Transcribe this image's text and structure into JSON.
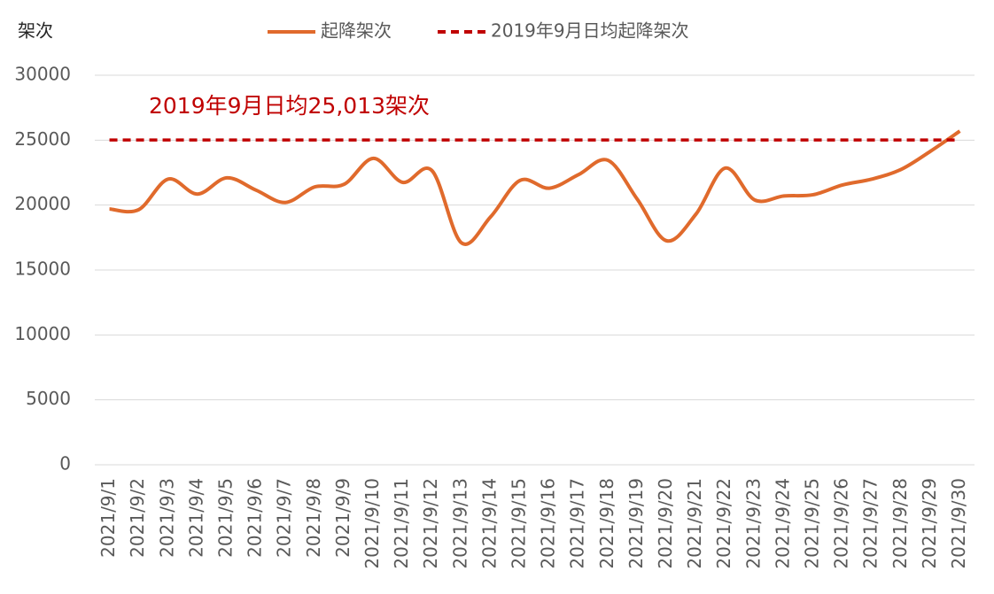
{
  "chart_data": {
    "type": "line",
    "y_label": "架次",
    "annotation": "2019年9月日均25,013架次",
    "categories": [
      "2021/9/1",
      "2021/9/2",
      "2021/9/3",
      "2021/9/4",
      "2021/9/5",
      "2021/9/6",
      "2021/9/7",
      "2021/9/8",
      "2021/9/9",
      "2021/9/10",
      "2021/9/11",
      "2021/9/12",
      "2021/9/13",
      "2021/9/14",
      "2021/9/15",
      "2021/9/16",
      "2021/9/17",
      "2021/9/18",
      "2021/9/19",
      "2021/9/20",
      "2021/9/21",
      "2021/9/22",
      "2021/9/23",
      "2021/9/24",
      "2021/9/25",
      "2021/9/26",
      "2021/9/27",
      "2021/9/28",
      "2021/9/29",
      "2021/9/30"
    ],
    "series": [
      {
        "name": "起降架次",
        "color": "#e06a2c",
        "style": "solid",
        "values": [
          19700,
          19650,
          22000,
          20850,
          22100,
          21150,
          20200,
          21400,
          21600,
          23600,
          21750,
          22650,
          17100,
          19100,
          21900,
          21300,
          22350,
          23450,
          20450,
          17250,
          19300,
          22850,
          20400,
          20700,
          20800,
          21550,
          22000,
          22750,
          24150,
          25700
        ]
      },
      {
        "name": "2019年9月日均起降架次",
        "color": "#c00000",
        "style": "dashed",
        "values": [
          25013,
          25013,
          25013,
          25013,
          25013,
          25013,
          25013,
          25013,
          25013,
          25013,
          25013,
          25013,
          25013,
          25013,
          25013,
          25013,
          25013,
          25013,
          25013,
          25013,
          25013,
          25013,
          25013,
          25013,
          25013,
          25013,
          25013,
          25013,
          25013,
          25013
        ]
      }
    ],
    "ylim": [
      0,
      30000
    ],
    "yticks": [
      0,
      5000,
      10000,
      15000,
      20000,
      25000,
      30000
    ],
    "grid": true
  }
}
